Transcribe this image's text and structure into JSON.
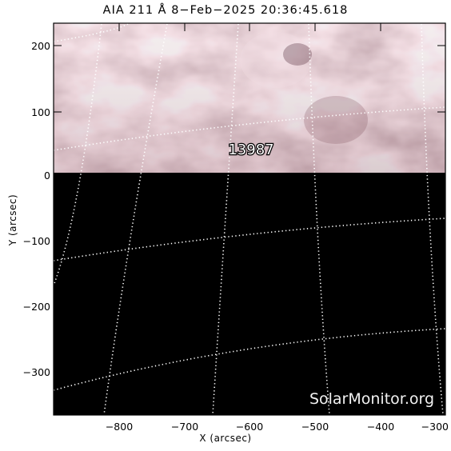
{
  "header": {
    "title": "AIA 211 Å  8−Feb−2025 20:36:45.618"
  },
  "axes": {
    "x_label": "X (arcsec)",
    "y_label": "Y (arcsec)",
    "x_ticks": [
      "−800",
      "−700",
      "−600",
      "−500",
      "−400",
      "−300"
    ],
    "y_ticks": [
      "200",
      "100",
      "0",
      "−100",
      "−200",
      "−300"
    ]
  },
  "image": {
    "data_region": "upper band only; rest of field of view blank (black)",
    "colormap": "sdoaia211",
    "colors": {
      "plasma_base": "#b07f8a",
      "empty_region": "#000000",
      "grid": "#ffffff"
    }
  },
  "region": {
    "label": "13987"
  },
  "watermark": {
    "text": "SolarMonitor.org"
  }
}
